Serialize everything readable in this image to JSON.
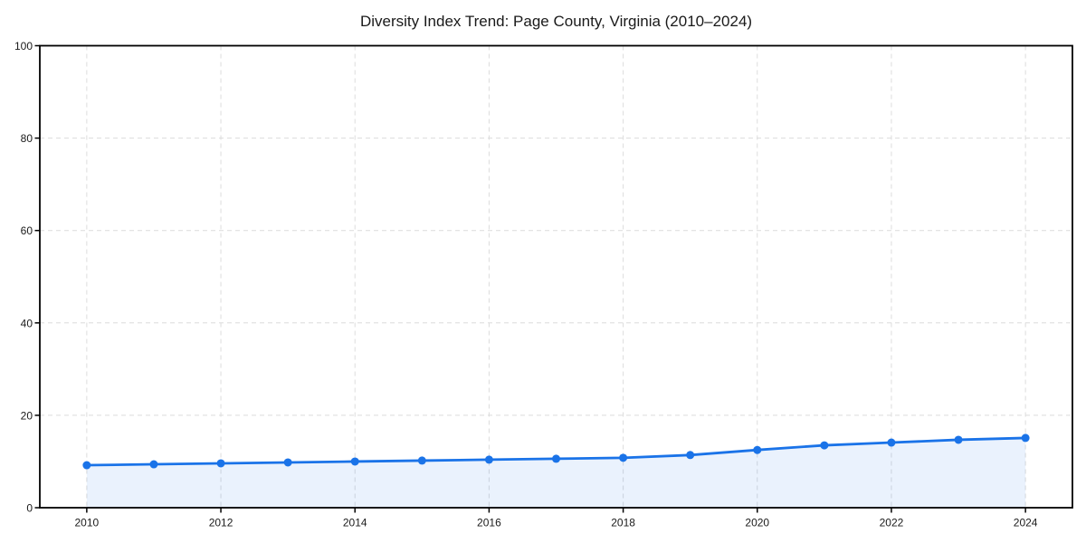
{
  "title": "Diversity Index Trend: Page County, Virginia (2010–2024)",
  "chart_data": {
    "type": "line",
    "title": "Diversity Index Trend: Page County, Virginia (2010–2024)",
    "xlabel": "",
    "ylabel": "",
    "x": [
      2010,
      2011,
      2012,
      2013,
      2014,
      2015,
      2016,
      2017,
      2018,
      2019,
      2020,
      2021,
      2022,
      2023,
      2024
    ],
    "series": [
      {
        "name": "Diversity Index",
        "values": [
          9.2,
          9.4,
          9.6,
          9.8,
          10.0,
          10.2,
          10.4,
          10.6,
          10.8,
          11.4,
          12.5,
          13.5,
          14.1,
          14.7,
          15.1
        ]
      }
    ],
    "xticks": [
      2010,
      2012,
      2014,
      2016,
      2018,
      2020,
      2022,
      2024
    ],
    "xtick_labels": [
      "2010",
      "2012",
      "2014",
      "2016",
      "2018",
      "2020",
      "2022",
      "2024"
    ],
    "yticks": [
      0,
      20,
      40,
      60,
      80,
      100
    ],
    "ytick_labels": [
      "0",
      "20",
      "40",
      "60",
      "80",
      "100"
    ],
    "xlim": [
      2009.3,
      2024.7
    ],
    "ylim": [
      0,
      100
    ],
    "grid": "dashed-both-axes",
    "legend_position": "none",
    "marker": "circle",
    "area_fill": true,
    "colors": {
      "line": "#1a73e8",
      "marker": "#1a73e8",
      "fill": "rgba(26,115,232,0.09)",
      "grid": "#dcdcdc",
      "frame": "#000000",
      "text": "#1a1a1a",
      "background": "#ffffff"
    }
  }
}
